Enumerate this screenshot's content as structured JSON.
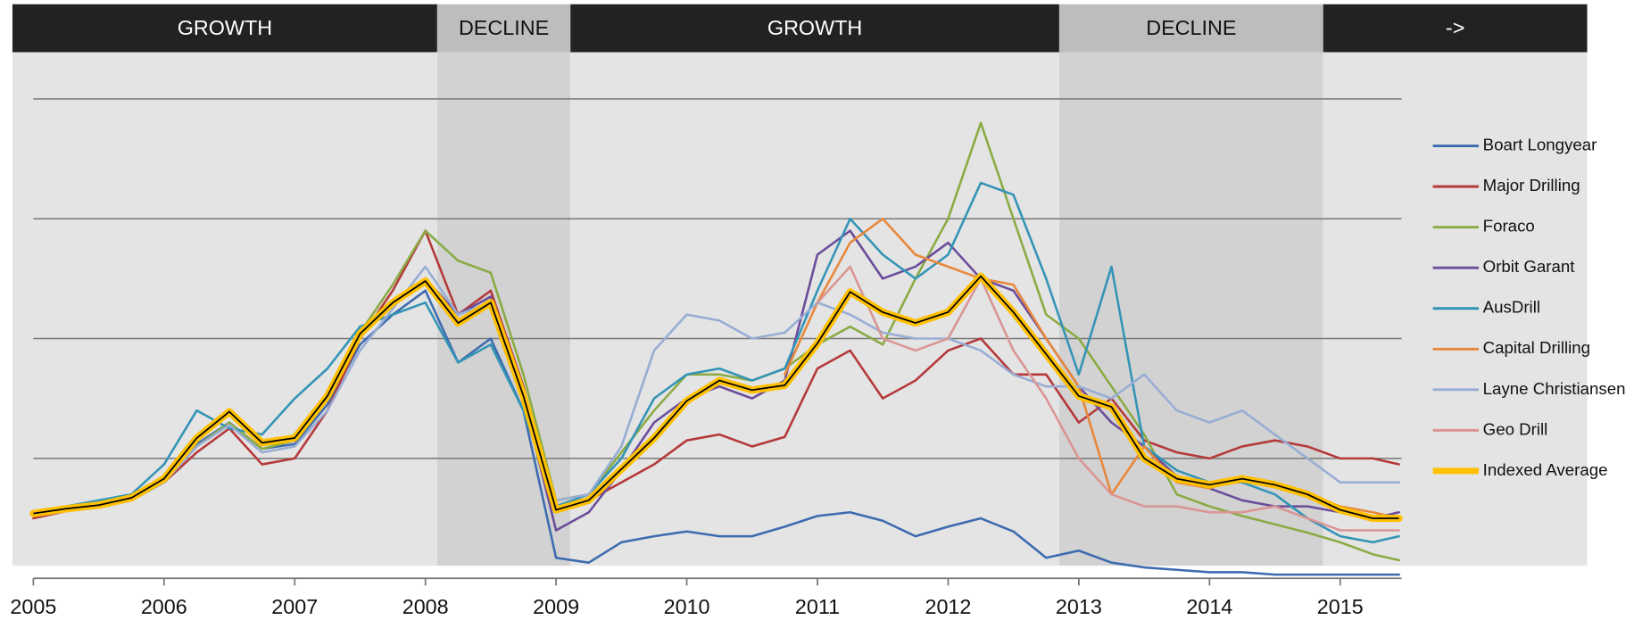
{
  "chart_data": {
    "type": "line",
    "xlim": [
      2005,
      2015.47
    ],
    "ylim": [
      0,
      439
    ],
    "xticks": [
      2005,
      2006,
      2007,
      2008,
      2009,
      2010,
      2011,
      2012,
      2013,
      2014,
      2015
    ],
    "grid": [
      100,
      200,
      300,
      400
    ],
    "legend": "right",
    "phases": [
      {
        "label": "GROWTH",
        "start": 2004.84,
        "end": 2008.09,
        "color": "#e4e4e4",
        "header_color": "#222222"
      },
      {
        "label": "DECLINE",
        "start": 2008.09,
        "end": 2009.11,
        "color": "#d2d2d2",
        "header_color": "#bdbdbd"
      },
      {
        "label": "GROWTH",
        "start": 2009.11,
        "end": 2012.85,
        "color": "#e4e4e4",
        "header_color": "#222222"
      },
      {
        "label": "DECLINE",
        "start": 2012.85,
        "end": 2014.87,
        "color": "#d2d2d2",
        "header_color": "#bdbdbd"
      },
      {
        "label": "->",
        "start": 2014.87,
        "end": 2016.89,
        "color": "#e4e4e4",
        "header_color": "#222222"
      }
    ],
    "x": [
      2005,
      2005.25,
      2005.5,
      2005.75,
      2006,
      2006.25,
      2006.5,
      2006.75,
      2007,
      2007.25,
      2007.5,
      2007.75,
      2008,
      2008.25,
      2008.5,
      2008.75,
      2009,
      2009.25,
      2009.5,
      2009.75,
      2010,
      2010.25,
      2010.5,
      2010.75,
      2011,
      2011.25,
      2011.5,
      2011.75,
      2012,
      2012.25,
      2012.5,
      2012.75,
      2013,
      2013.25,
      2013.5,
      2013.75,
      2014,
      2014.25,
      2014.5,
      2014.75,
      2015,
      2015.25,
      2015.45
    ],
    "series": [
      {
        "name": "Boart Longyear",
        "color": "#3e6baf",
        "width": 2.2,
        "values": [
          54,
          57,
          60,
          65,
          80,
          112,
          130,
          108,
          112,
          145,
          195,
          220,
          240,
          180,
          200,
          140,
          17,
          13,
          30,
          35,
          39,
          35,
          35,
          43,
          52,
          55,
          48,
          35,
          43,
          50,
          39,
          17,
          23,
          13,
          9,
          7,
          5,
          5,
          3,
          3,
          3,
          3,
          3
        ]
      },
      {
        "name": "Major Drilling",
        "color": "#b5393a",
        "width": 2.2,
        "values": [
          50,
          56,
          60,
          68,
          80,
          105,
          125,
          95,
          100,
          140,
          200,
          240,
          290,
          220,
          240,
          160,
          60,
          65,
          80,
          95,
          115,
          120,
          110,
          118,
          175,
          190,
          150,
          165,
          190,
          200,
          170,
          170,
          130,
          150,
          115,
          105,
          100,
          110,
          115,
          110,
          100,
          100,
          95
        ]
      },
      {
        "name": "Foraco",
        "color": "#8aab44",
        "width": 2.2,
        "values": [
          52,
          56,
          60,
          66,
          80,
          110,
          130,
          108,
          115,
          150,
          205,
          245,
          290,
          265,
          255,
          170,
          65,
          70,
          105,
          140,
          170,
          170,
          165,
          175,
          195,
          210,
          195,
          250,
          300,
          380,
          300,
          220,
          200,
          160,
          120,
          70,
          60,
          52,
          45,
          38,
          30,
          20,
          15
        ]
      },
      {
        "name": "Orbit Garant",
        "color": "#6b4c9a",
        "width": 2.2,
        "values": [
          null,
          null,
          null,
          null,
          null,
          null,
          null,
          null,
          null,
          null,
          null,
          230,
          250,
          220,
          235,
          150,
          40,
          55,
          90,
          130,
          150,
          160,
          150,
          165,
          270,
          290,
          250,
          260,
          280,
          250,
          240,
          200,
          160,
          130,
          110,
          85,
          75,
          65,
          60,
          60,
          55,
          50,
          55
        ]
      },
      {
        "name": "AusDrill",
        "color": "#3494b5",
        "width": 2.2,
        "values": [
          55,
          60,
          65,
          70,
          95,
          140,
          125,
          120,
          150,
          175,
          210,
          220,
          230,
          180,
          195,
          140,
          60,
          70,
          100,
          150,
          170,
          175,
          165,
          175,
          240,
          300,
          270,
          250,
          270,
          330,
          320,
          250,
          170,
          260,
          110,
          90,
          80,
          80,
          70,
          50,
          35,
          30,
          35
        ]
      },
      {
        "name": "Capital Drilling",
        "color": "#e8873a",
        "width": 2.2,
        "values": [
          null,
          null,
          null,
          null,
          null,
          null,
          null,
          null,
          null,
          null,
          null,
          null,
          null,
          null,
          null,
          null,
          null,
          null,
          null,
          null,
          null,
          null,
          null,
          170,
          230,
          280,
          300,
          270,
          260,
          250,
          245,
          200,
          160,
          70,
          110,
          80,
          75,
          85,
          80,
          70,
          60,
          55,
          50
        ]
      },
      {
        "name": "Layne Christiansen",
        "color": "#98add4",
        "width": 2.2,
        "values": [
          52,
          57,
          60,
          66,
          80,
          110,
          128,
          105,
          110,
          140,
          190,
          225,
          260,
          220,
          230,
          150,
          65,
          70,
          110,
          190,
          220,
          215,
          200,
          205,
          230,
          220,
          205,
          200,
          200,
          190,
          170,
          160,
          160,
          150,
          170,
          140,
          130,
          140,
          120,
          100,
          80,
          80,
          80
        ]
      },
      {
        "name": "Geo Drill",
        "color": "#d99594",
        "width": 2.2,
        "values": [
          null,
          null,
          null,
          null,
          null,
          null,
          null,
          null,
          null,
          null,
          null,
          null,
          null,
          null,
          null,
          null,
          null,
          null,
          null,
          null,
          null,
          null,
          null,
          null,
          230,
          260,
          200,
          190,
          200,
          250,
          190,
          150,
          100,
          70,
          60,
          60,
          55,
          55,
          60,
          50,
          40,
          40,
          40
        ]
      },
      {
        "name": "Indexed Average",
        "color": "#ffc000",
        "width": 7,
        "values": [
          54,
          58,
          61,
          67,
          83,
          117,
          139,
          113,
          117,
          152,
          204,
          230,
          248,
          213,
          230,
          152,
          57,
          65,
          91,
          117,
          148,
          165,
          157,
          161,
          196,
          239,
          222,
          213,
          222,
          252,
          222,
          187,
          152,
          143,
          100,
          83,
          78,
          83,
          78,
          70,
          57,
          50,
          50
        ]
      }
    ]
  }
}
